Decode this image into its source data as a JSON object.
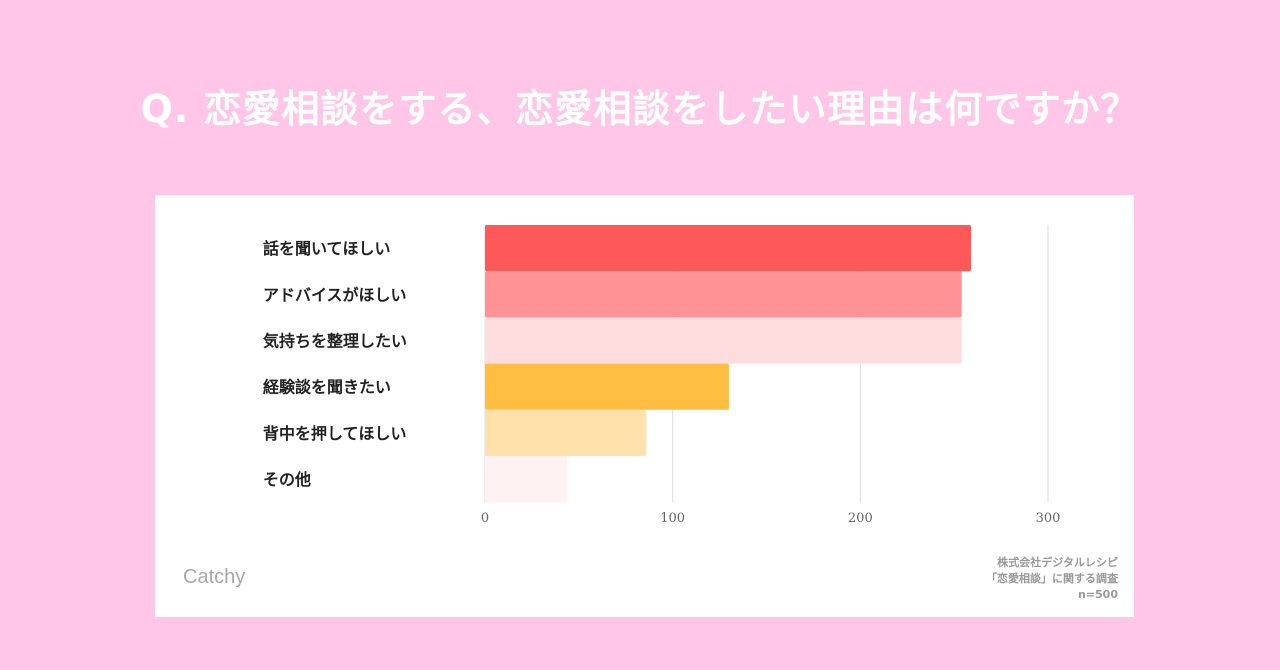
{
  "title": "Q. 恋愛相談をする、恋愛相談をしたい理由は何ですか？",
  "brand": "Catchy",
  "source": {
    "line1": "株式会社デジタルレシピ",
    "line2": "「恋愛相談」に関する調査",
    "line3": "n=500"
  },
  "chart_data": {
    "type": "bar",
    "orientation": "horizontal",
    "categories": [
      "話を聞いてほしい",
      "アドバイスがほしい",
      "気持ちを整理したい",
      "経験談を聞きたい",
      "背中を押してほしい",
      "その他"
    ],
    "values": [
      259,
      254,
      254,
      130,
      86,
      44
    ],
    "bar_colors": [
      "#ff5858",
      "#ff9295",
      "#ffdcdd",
      "#ffbd42",
      "#ffe1ac",
      "#fdf1f1"
    ],
    "xlim": [
      0,
      330
    ],
    "xticks": [
      0,
      100,
      200,
      300
    ],
    "grid": true,
    "legend": "none"
  }
}
